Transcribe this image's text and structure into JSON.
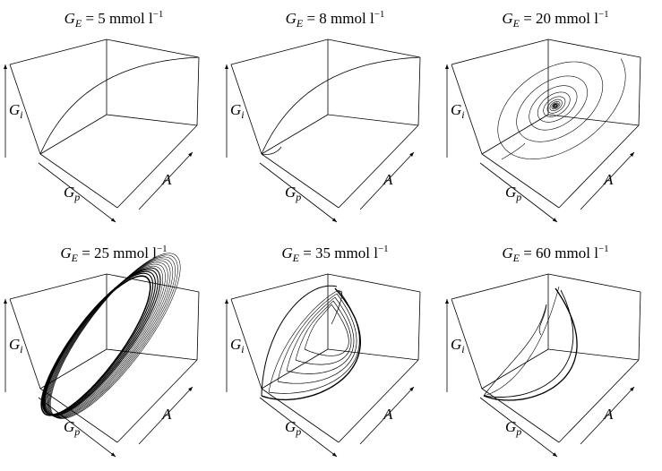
{
  "panels": [
    {
      "var": "G",
      "sub": "E",
      "eq": " = ",
      "value": "5",
      "unit": " mmol l",
      "exp": "−1",
      "curve": "arc"
    },
    {
      "var": "G",
      "sub": "E",
      "eq": " = ",
      "value": "8",
      "unit": " mmol l",
      "exp": "−1",
      "curve": "arc-hook"
    },
    {
      "var": "G",
      "sub": "E",
      "eq": " = ",
      "value": "20",
      "unit": " mmol l",
      "exp": "−1",
      "curve": "spiral"
    },
    {
      "var": "G",
      "sub": "E",
      "eq": " = ",
      "value": "25",
      "unit": " mmol l",
      "exp": "−1",
      "curve": "limit-cycle-dense"
    },
    {
      "var": "G",
      "sub": "E",
      "eq": " = ",
      "value": "35",
      "unit": " mmol l",
      "exp": "−1",
      "curve": "limit-cycle-nested"
    },
    {
      "var": "G",
      "sub": "E",
      "eq": " = ",
      "value": "60",
      "unit": " mmol l",
      "exp": "−1",
      "curve": "crescent"
    }
  ],
  "axes": {
    "gi": {
      "var": "G",
      "sub": "i"
    },
    "gp": {
      "var": "G",
      "sub": "p"
    },
    "a": {
      "var": "A"
    }
  },
  "colors": {
    "ink": "#000000",
    "background": "#ffffff"
  }
}
